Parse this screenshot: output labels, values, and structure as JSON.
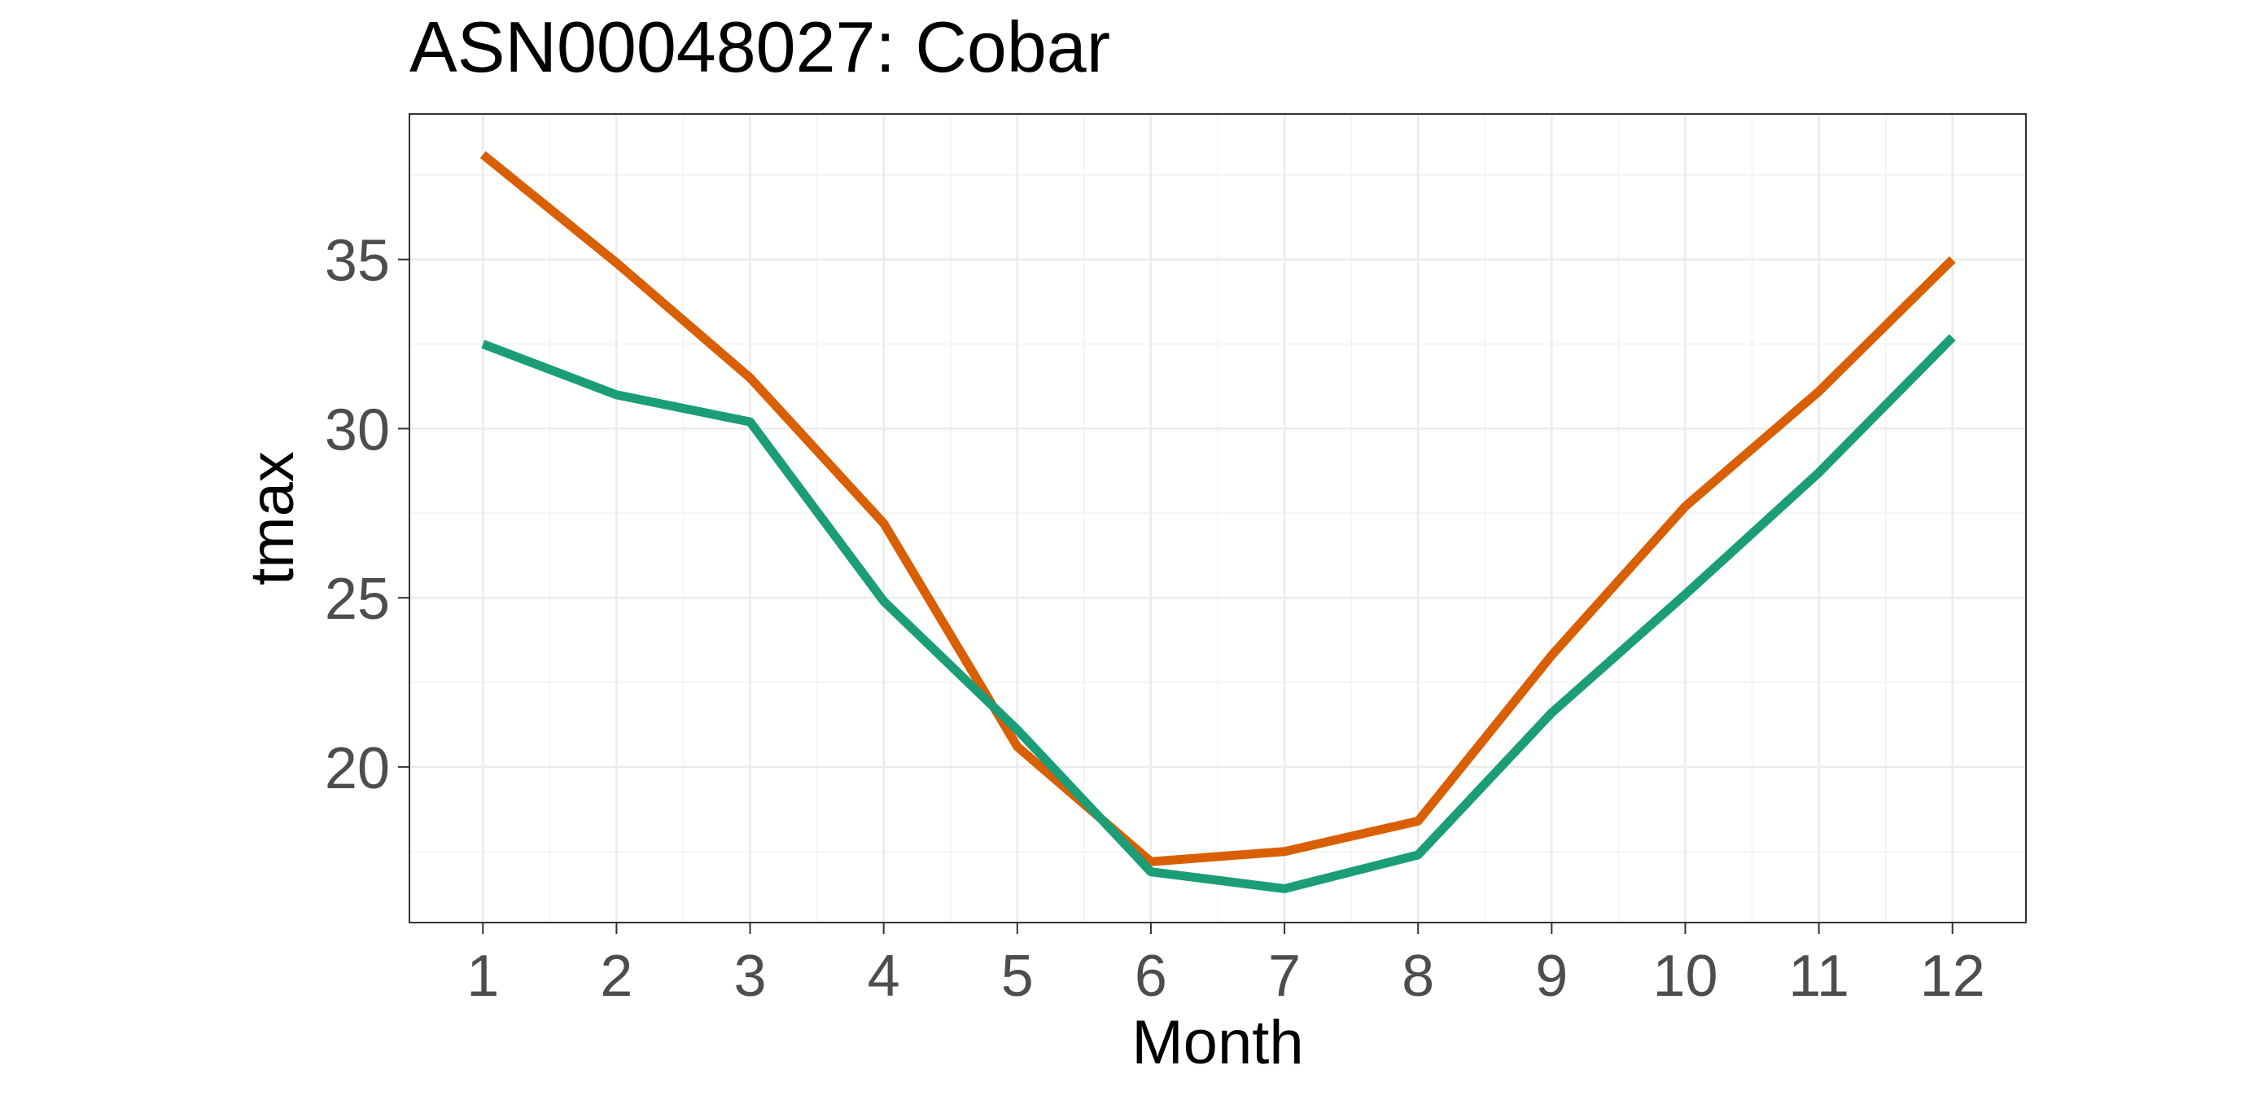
{
  "chart_data": {
    "type": "line",
    "title": "ASN00048027: Cobar",
    "xlabel": "Month",
    "ylabel": "tmax",
    "x": [
      1,
      2,
      3,
      4,
      5,
      6,
      7,
      8,
      9,
      10,
      11,
      12
    ],
    "xlim": [
      0.45,
      12.55
    ],
    "ylim": [
      15.4,
      39.3
    ],
    "yticks": [
      20,
      25,
      30,
      35
    ],
    "grid": true,
    "legend": "none",
    "series": [
      {
        "color": "#D95F02",
        "values": [
          38.1,
          34.9,
          31.5,
          27.2,
          20.6,
          17.2,
          17.5,
          18.4,
          23.3,
          27.7,
          31.1,
          35.0
        ]
      },
      {
        "color": "#1B9E77",
        "values": [
          32.5,
          31.0,
          30.2,
          24.9,
          21.1,
          16.9,
          16.4,
          17.4,
          21.6,
          25.1,
          28.7,
          32.7
        ]
      }
    ]
  }
}
